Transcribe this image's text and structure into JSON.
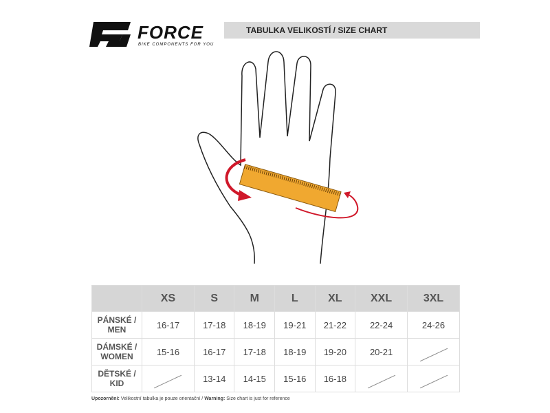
{
  "brand": {
    "name": "FORCE",
    "tagline": "BIKE COMPONENTS FOR YOU"
  },
  "title": "TABULKA VELIKOSTÍ / SIZE CHART",
  "colors": {
    "ruler": "#f0a830",
    "arrow": "#d0182a",
    "header_bg": "#d6d6d6"
  },
  "table": {
    "headers": [
      "XS",
      "S",
      "M",
      "L",
      "XL",
      "XXL",
      "3XL"
    ],
    "rows": [
      {
        "label_cz": "PÁNSKÉ /",
        "label_en": "MEN",
        "values": [
          "16-17",
          "17-18",
          "18-19",
          "19-21",
          "21-22",
          "22-24",
          "24-26"
        ]
      },
      {
        "label_cz": "DÁMSKÉ /",
        "label_en": "WOMEN",
        "values": [
          "15-16",
          "16-17",
          "17-18",
          "18-19",
          "19-20",
          "20-21",
          null
        ]
      },
      {
        "label_cz": "DĚTSKÉ /",
        "label_en": "KID",
        "values": [
          null,
          "13-14",
          "14-15",
          "15-16",
          "16-18",
          null,
          null
        ]
      }
    ]
  },
  "note": {
    "label": "Upozornění:",
    "cz": "Velikostní tabulka je pouze orientační /",
    "warning_label": "Warning:",
    "en": "Size chart is just for reference"
  }
}
